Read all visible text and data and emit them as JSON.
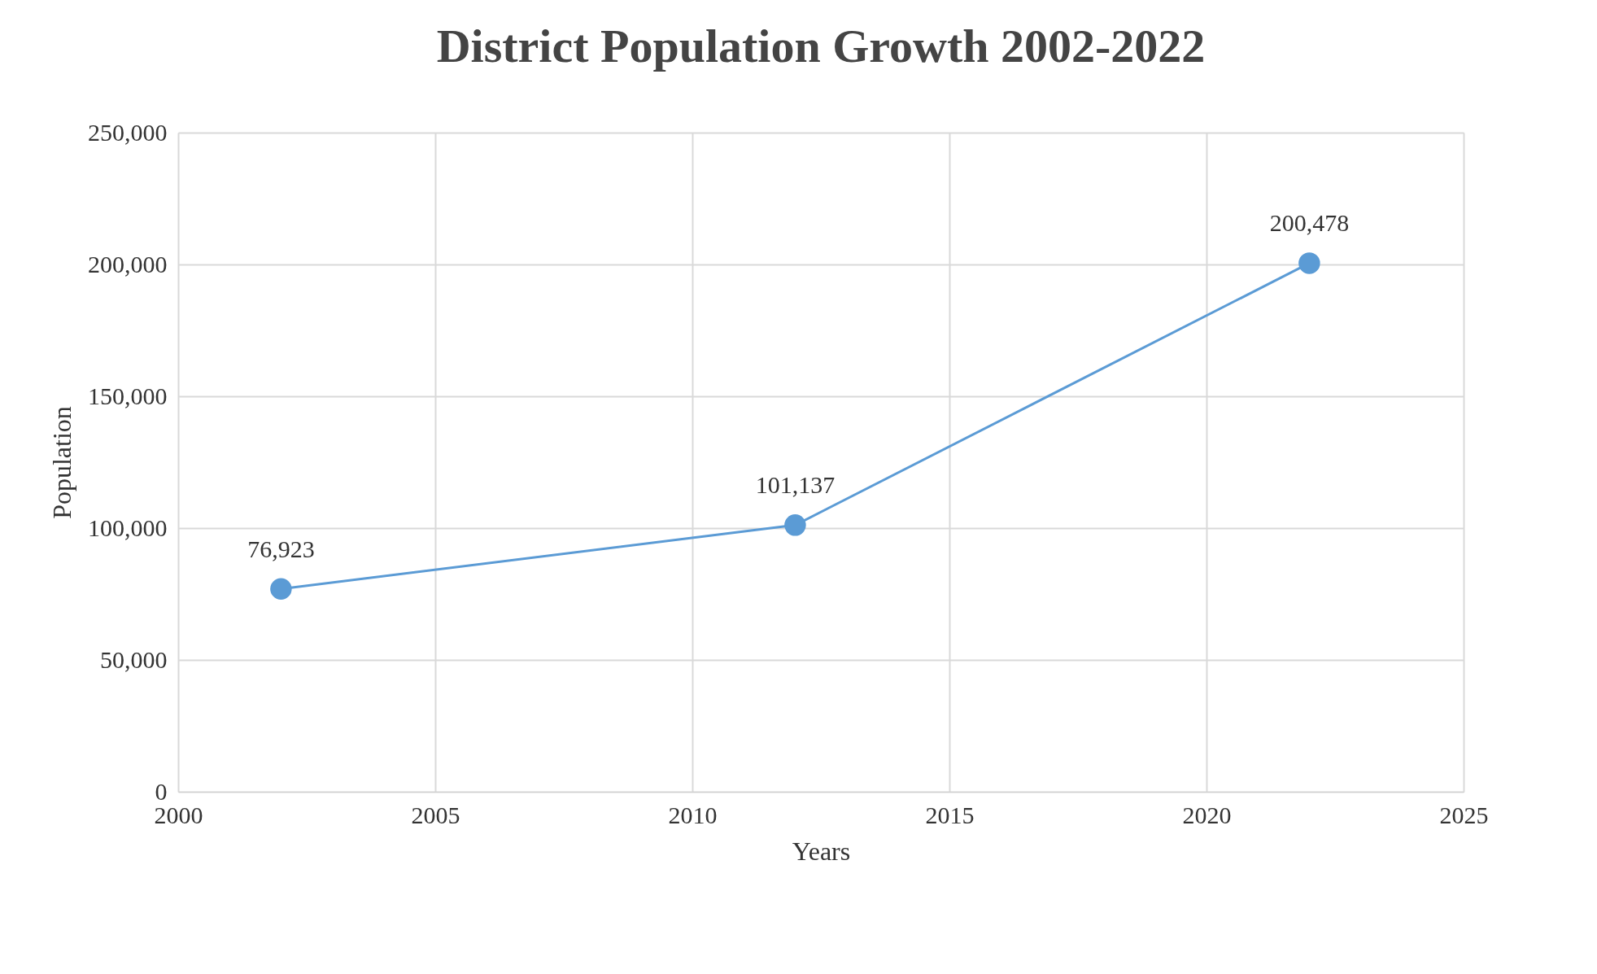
{
  "chart_data": {
    "type": "line",
    "title": "District Population Growth 2002-2022",
    "xlabel": "Years",
    "ylabel": "Population",
    "x": [
      2002,
      2012,
      2022
    ],
    "series": [
      {
        "color": "#5b9bd5",
        "values": [
          76923,
          101137,
          200478
        ],
        "value_labels": [
          "76,923",
          "101,137",
          "200,478"
        ]
      }
    ],
    "xlim": [
      2000,
      2025
    ],
    "xticks": [
      2000,
      2005,
      2010,
      2015,
      2020,
      2025
    ],
    "ylim": [
      0,
      250000
    ],
    "yticks": [
      0,
      {
        "value": 50000,
        "label": "50,000"
      },
      {
        "value": 100000,
        "label": "100,000"
      },
      {
        "value": 150000,
        "label": "150,000"
      },
      {
        "value": 200000,
        "label": "200,000"
      },
      {
        "value": 250000,
        "label": "250,000"
      }
    ],
    "grid": true,
    "marker": "circle",
    "line_style": "solid"
  }
}
